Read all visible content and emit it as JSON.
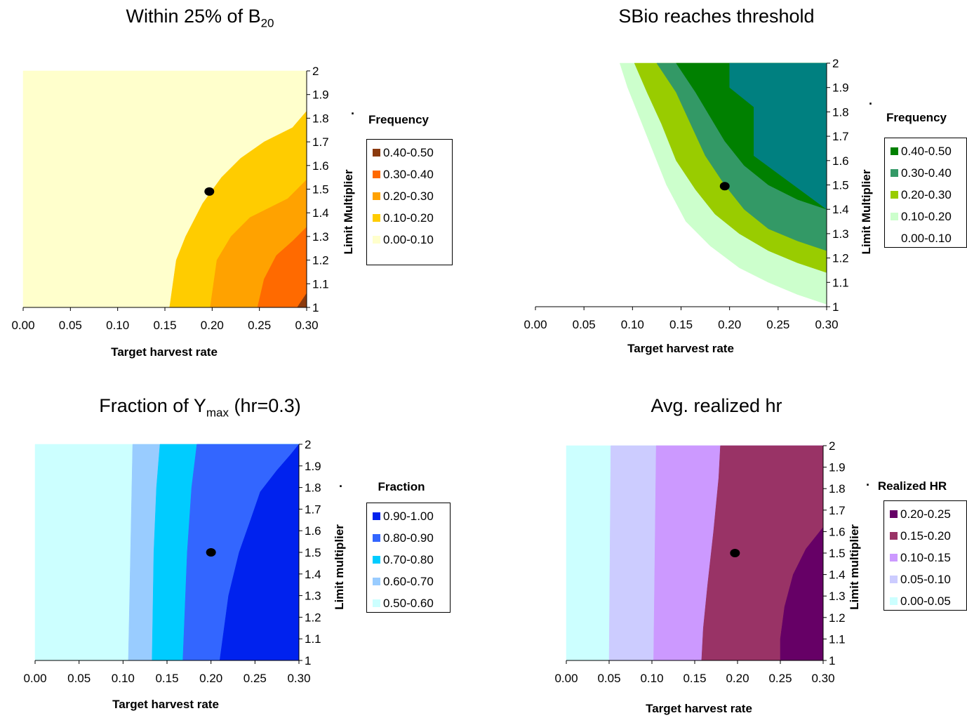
{
  "chart_data": [
    {
      "type": "heatmap",
      "title": "Within 25% of B",
      "title_subscript": "20",
      "xlabel": "Target harvest rate",
      "ylabel": "Limit Multiplier",
      "xlim": [
        0,
        0.3
      ],
      "ylim": [
        1,
        2
      ],
      "x_ticks": [
        "0.00",
        "0.05",
        "0.10",
        "0.15",
        "0.20",
        "0.25",
        "0.30"
      ],
      "y_ticks": [
        "1",
        "1.1",
        "1.2",
        "1.3",
        "1.4",
        "1.5",
        "1.6",
        "1.7",
        "1.8",
        "1.9",
        "2"
      ],
      "legend_title": "Frequency",
      "legend": [
        {
          "label": "0.40-0.50",
          "color": "#8b3a0e"
        },
        {
          "label": "0.30-0.40",
          "color": "#ff6a00"
        },
        {
          "label": "0.20-0.30",
          "color": "#ffa200"
        },
        {
          "label": "0.10-0.20",
          "color": "#ffcc00"
        },
        {
          "label": "0.00-0.10",
          "color": "#ffffcc"
        }
      ],
      "regions": [
        {
          "label": "0.00-0.10",
          "color": "#ffffcc",
          "points": [
            [
              0,
              1
            ],
            [
              0.3,
              1
            ],
            [
              0.3,
              2
            ],
            [
              0,
              2
            ]
          ]
        },
        {
          "label": "0.10-0.20",
          "color": "#ffcc00",
          "points": [
            [
              0.155,
              1
            ],
            [
              0.3,
              1
            ],
            [
              0.3,
              1.83
            ],
            [
              0.285,
              1.76
            ],
            [
              0.255,
              1.7
            ],
            [
              0.23,
              1.63
            ],
            [
              0.21,
              1.55
            ],
            [
              0.19,
              1.44
            ],
            [
              0.172,
              1.3
            ],
            [
              0.162,
              1.2
            ]
          ]
        },
        {
          "label": "0.20-0.30",
          "color": "#ffa200",
          "points": [
            [
              0.198,
              1
            ],
            [
              0.3,
              1
            ],
            [
              0.3,
              1.54
            ],
            [
              0.28,
              1.46
            ],
            [
              0.26,
              1.42
            ],
            [
              0.24,
              1.38
            ],
            [
              0.22,
              1.3
            ],
            [
              0.205,
              1.2
            ]
          ]
        },
        {
          "label": "0.30-0.40",
          "color": "#ff6a00",
          "points": [
            [
              0.248,
              1
            ],
            [
              0.3,
              1
            ],
            [
              0.3,
              1.34
            ],
            [
              0.285,
              1.28
            ],
            [
              0.268,
              1.22
            ],
            [
              0.255,
              1.12
            ]
          ]
        },
        {
          "label": "0.40-0.50",
          "color": "#8b3a0e",
          "points": [
            [
              0.29,
              1
            ],
            [
              0.3,
              1
            ],
            [
              0.3,
              1.06
            ]
          ]
        }
      ],
      "point": {
        "x": 0.197,
        "y": 1.49
      }
    },
    {
      "type": "heatmap",
      "title": "SBio reaches threshold",
      "xlabel": "Target harvest rate",
      "ylabel": "Limit Multiplier",
      "xlim": [
        0,
        0.3
      ],
      "ylim": [
        1,
        2
      ],
      "x_ticks": [
        "0.00",
        "0.05",
        "0.10",
        "0.15",
        "0.20",
        "0.25",
        "0.30"
      ],
      "y_ticks": [
        "1",
        "1.1",
        "1.2",
        "1.3",
        "1.4",
        "1.5",
        "1.6",
        "1.7",
        "1.8",
        "1.9",
        "2"
      ],
      "legend_title": "Frequency",
      "legend": [
        {
          "label": "0.40-0.50",
          "color": "#008000"
        },
        {
          "label": "0.30-0.40",
          "color": "#339966"
        },
        {
          "label": "0.20-0.30",
          "color": "#99cc00"
        },
        {
          "label": "0.10-0.20",
          "color": "#ccffcc"
        },
        {
          "label": "0.00-0.10",
          "color": "#ffffff"
        }
      ],
      "regions": [
        {
          "label": "0.10-0.20",
          "color": "#ccffcc",
          "points": [
            [
              0.087,
              2
            ],
            [
              0.3,
              2
            ],
            [
              0.3,
              1.01
            ],
            [
              0.27,
              1.05
            ],
            [
              0.24,
              1.1
            ],
            [
              0.21,
              1.16
            ],
            [
              0.18,
              1.25
            ],
            [
              0.155,
              1.35
            ],
            [
              0.135,
              1.5
            ],
            [
              0.12,
              1.65
            ],
            [
              0.105,
              1.8
            ],
            [
              0.095,
              1.9
            ]
          ]
        },
        {
          "label": "0.20-0.30",
          "color": "#99cc00",
          "points": [
            [
              0.102,
              2
            ],
            [
              0.3,
              2
            ],
            [
              0.3,
              1.14
            ],
            [
              0.27,
              1.18
            ],
            [
              0.24,
              1.23
            ],
            [
              0.21,
              1.3
            ],
            [
              0.185,
              1.38
            ],
            [
              0.165,
              1.48
            ],
            [
              0.145,
              1.6
            ],
            [
              0.13,
              1.75
            ],
            [
              0.115,
              1.88
            ]
          ]
        },
        {
          "label": "0.30-0.40",
          "color": "#339966",
          "points": [
            [
              0.125,
              2
            ],
            [
              0.3,
              2
            ],
            [
              0.3,
              1.23
            ],
            [
              0.27,
              1.27
            ],
            [
              0.24,
              1.32
            ],
            [
              0.215,
              1.4
            ],
            [
              0.195,
              1.5
            ],
            [
              0.175,
              1.62
            ],
            [
              0.16,
              1.75
            ],
            [
              0.145,
              1.88
            ]
          ]
        },
        {
          "label": "0.40-0.50",
          "color": "#008000",
          "points": [
            [
              0.145,
              2
            ],
            [
              0.3,
              2
            ],
            [
              0.3,
              1.4
            ],
            [
              0.27,
              1.44
            ],
            [
              0.24,
              1.5
            ],
            [
              0.215,
              1.58
            ],
            [
              0.195,
              1.68
            ],
            [
              0.18,
              1.78
            ],
            [
              0.165,
              1.88
            ]
          ]
        },
        {
          "label": "0.40-0.50",
          "color": "#008080",
          "points": [
            [
              0.2,
              2
            ],
            [
              0.3,
              2
            ],
            [
              0.3,
              1.4
            ],
            [
              0.225,
              1.62
            ],
            [
              0.225,
              1.82
            ],
            [
              0.2,
              1.9
            ]
          ]
        }
      ],
      "point": {
        "x": 0.195,
        "y": 1.495
      }
    },
    {
      "type": "heatmap",
      "title": "Fraction of Y",
      "title_subscript": "max",
      "title_suffix": " (hr=0.3)",
      "xlabel": "Target harvest rate",
      "ylabel": "Limit multiplier",
      "xlim": [
        0,
        0.3
      ],
      "ylim": [
        1,
        2
      ],
      "x_ticks": [
        "0.00",
        "0.05",
        "0.10",
        "0.15",
        "0.20",
        "0.25",
        "0.30"
      ],
      "y_ticks": [
        "1",
        "1.1",
        "1.2",
        "1.3",
        "1.4",
        "1.5",
        "1.6",
        "1.7",
        "1.8",
        "1.9",
        "2"
      ],
      "legend_title": "Fraction",
      "legend": [
        {
          "label": "0.90-1.00",
          "color": "#0022ee"
        },
        {
          "label": "0.80-0.90",
          "color": "#3366ff"
        },
        {
          "label": "0.70-0.80",
          "color": "#00ccff"
        },
        {
          "label": "0.60-0.70",
          "color": "#99ccff"
        },
        {
          "label": "0.50-0.60",
          "color": "#ccffff"
        }
      ],
      "regions": [
        {
          "label": "0.50-0.60",
          "color": "#ccffff",
          "points": [
            [
              0,
              1
            ],
            [
              0.3,
              1
            ],
            [
              0.3,
              2
            ],
            [
              0,
              2
            ]
          ]
        },
        {
          "label": "0.60-0.70",
          "color": "#99ccff",
          "points": [
            [
              0.106,
              1
            ],
            [
              0.3,
              1
            ],
            [
              0.3,
              2
            ],
            [
              0.111,
              2
            ]
          ]
        },
        {
          "label": "0.70-0.80",
          "color": "#00ccff",
          "points": [
            [
              0.133,
              1
            ],
            [
              0.3,
              1
            ],
            [
              0.3,
              2
            ],
            [
              0.142,
              2
            ],
            [
              0.138,
              1.8
            ],
            [
              0.135,
              1.5
            ]
          ]
        },
        {
          "label": "0.80-0.90",
          "color": "#3366ff",
          "points": [
            [
              0.168,
              1
            ],
            [
              0.3,
              1
            ],
            [
              0.3,
              2
            ],
            [
              0.184,
              2
            ],
            [
              0.178,
              1.8
            ],
            [
              0.173,
              1.5
            ]
          ]
        },
        {
          "label": "0.90-1.00",
          "color": "#0022ee",
          "points": [
            [
              0.21,
              1
            ],
            [
              0.3,
              1
            ],
            [
              0.3,
              2
            ],
            [
              0.29,
              1.95
            ],
            [
              0.275,
              1.88
            ],
            [
              0.256,
              1.78
            ],
            [
              0.245,
              1.65
            ],
            [
              0.232,
              1.5
            ],
            [
              0.22,
              1.3
            ]
          ]
        }
      ],
      "point": {
        "x": 0.2,
        "y": 1.5
      }
    },
    {
      "type": "heatmap",
      "title": "Avg. realized hr",
      "xlabel": "Target harvest rate",
      "ylabel": "Limit multiplier",
      "xlim": [
        0,
        0.3
      ],
      "ylim": [
        1,
        2
      ],
      "x_ticks": [
        "0.00",
        "0.05",
        "0.10",
        "0.15",
        "0.20",
        "0.25",
        "0.30"
      ],
      "y_ticks": [
        "1",
        "1.1",
        "1.2",
        "1.3",
        "1.4",
        "1.5",
        "1.6",
        "1.7",
        "1.8",
        "1.9",
        "2"
      ],
      "legend_title": "Realized HR",
      "legend": [
        {
          "label": "0.20-0.25",
          "color": "#660066"
        },
        {
          "label": "0.15-0.20",
          "color": "#993366"
        },
        {
          "label": "0.10-0.15",
          "color": "#cc99ff"
        },
        {
          "label": "0.05-0.10",
          "color": "#ccccff"
        },
        {
          "label": "0.00-0.05",
          "color": "#ccffff"
        }
      ],
      "regions": [
        {
          "label": "0.00-0.05",
          "color": "#ccffff",
          "points": [
            [
              0,
              1
            ],
            [
              0.3,
              1
            ],
            [
              0.3,
              2
            ],
            [
              0,
              2
            ]
          ]
        },
        {
          "label": "0.05-0.10",
          "color": "#ccccff",
          "points": [
            [
              0.05,
              1
            ],
            [
              0.3,
              1
            ],
            [
              0.3,
              2
            ],
            [
              0.052,
              2
            ]
          ]
        },
        {
          "label": "0.10-0.15",
          "color": "#cc99ff",
          "points": [
            [
              0.102,
              1
            ],
            [
              0.3,
              1
            ],
            [
              0.3,
              2
            ],
            [
              0.105,
              2
            ]
          ]
        },
        {
          "label": "0.15-0.20",
          "color": "#993366",
          "points": [
            [
              0.158,
              1
            ],
            [
              0.3,
              1
            ],
            [
              0.3,
              2
            ],
            [
              0.18,
              2
            ],
            [
              0.178,
              1.85
            ],
            [
              0.172,
              1.6
            ],
            [
              0.165,
              1.35
            ],
            [
              0.16,
              1.15
            ]
          ]
        },
        {
          "label": "0.20-0.25",
          "color": "#660066",
          "points": [
            [
              0.25,
              1
            ],
            [
              0.3,
              1
            ],
            [
              0.3,
              1.62
            ],
            [
              0.28,
              1.52
            ],
            [
              0.265,
              1.4
            ],
            [
              0.255,
              1.25
            ],
            [
              0.25,
              1.1
            ]
          ]
        }
      ],
      "point": {
        "x": 0.197,
        "y": 1.5
      }
    }
  ]
}
